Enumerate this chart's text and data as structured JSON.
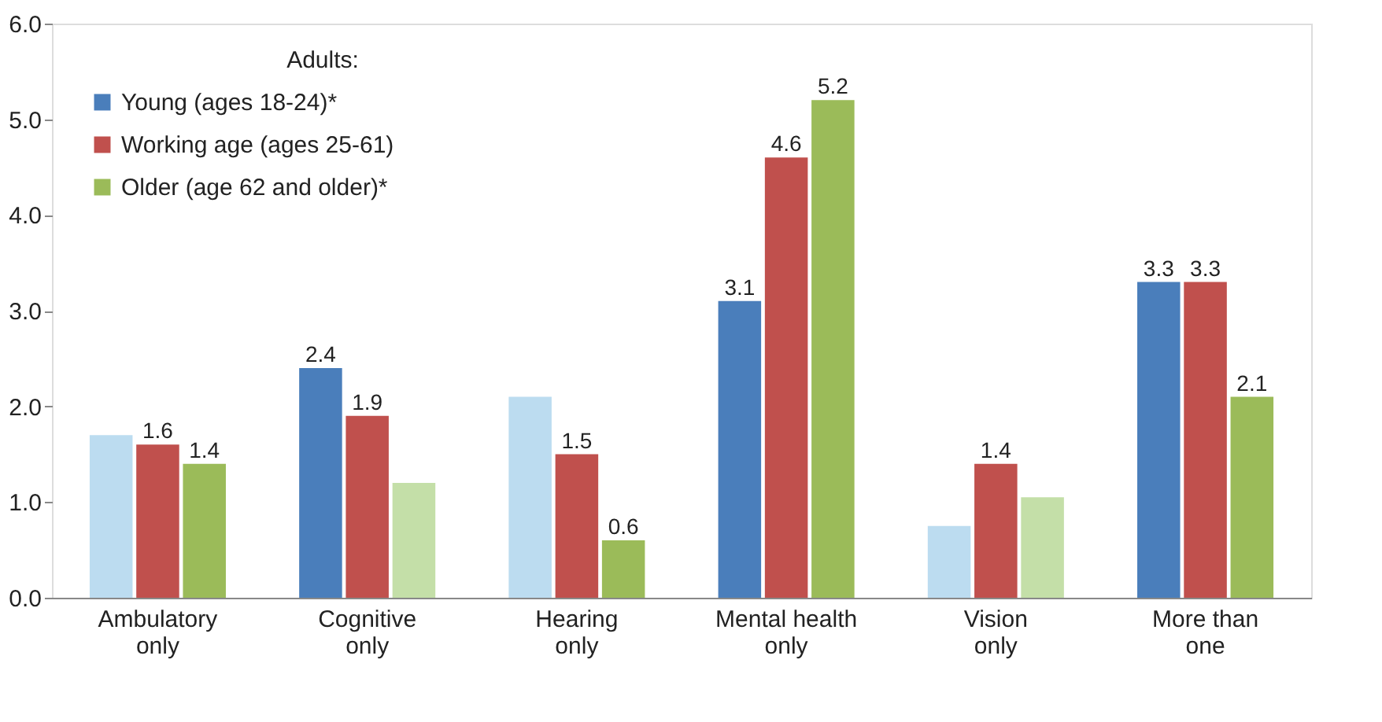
{
  "chart_data": {
    "type": "bar",
    "legend_title": "Adults:",
    "legend": "top left",
    "categories": [
      "Ambulatory\nonly",
      "Cognitive\nonly",
      "Hearing\nonly",
      "Mental health\nonly",
      "Vision\nonly",
      "More than\none"
    ],
    "series": [
      {
        "name": "Young (ages 18-24)*",
        "color": "#4a7ebb",
        "colors": [
          "#bcdcf0",
          "#4a7ebb",
          "#bcdcf0",
          "#4a7ebb",
          "#bcdcf0",
          "#4a7ebb"
        ],
        "values": [
          1.7,
          2.4,
          2.1,
          3.1,
          0.75,
          3.3
        ],
        "value_labels": [
          null,
          "2.4",
          null,
          "3.1",
          null,
          "3.3"
        ]
      },
      {
        "name": "Working age (ages 25-61)",
        "color": "#c0504d",
        "colors": [
          "#c0504d",
          "#c0504d",
          "#c0504d",
          "#c0504d",
          "#c0504d",
          "#c0504d"
        ],
        "values": [
          1.6,
          1.9,
          1.5,
          4.6,
          1.4,
          3.3
        ],
        "value_labels": [
          "1.6",
          "1.9",
          "1.5",
          "4.6",
          "1.4",
          "3.3"
        ]
      },
      {
        "name": "Older (age 62 and older)*",
        "color": "#9bbb59",
        "colors": [
          "#9bbb59",
          "#c4dfa8",
          "#9bbb59",
          "#9bbb59",
          "#c4dfa8",
          "#9bbb59"
        ],
        "values": [
          1.4,
          1.2,
          0.6,
          5.2,
          1.05,
          2.1
        ],
        "value_labels": [
          "1.4",
          null,
          "0.6",
          "5.2",
          null,
          "2.1"
        ]
      }
    ],
    "ylim": [
      0,
      6
    ],
    "yticks": [
      {
        "value": 0,
        "label": "0.0"
      },
      {
        "value": 1,
        "label": "1.0"
      },
      {
        "value": 2,
        "label": "2.0"
      },
      {
        "value": 3,
        "label": "3.0"
      },
      {
        "value": 4,
        "label": "4.0"
      },
      {
        "value": 5,
        "label": "5.0"
      },
      {
        "value": 6,
        "label": "6.0"
      }
    ],
    "grid": false
  }
}
